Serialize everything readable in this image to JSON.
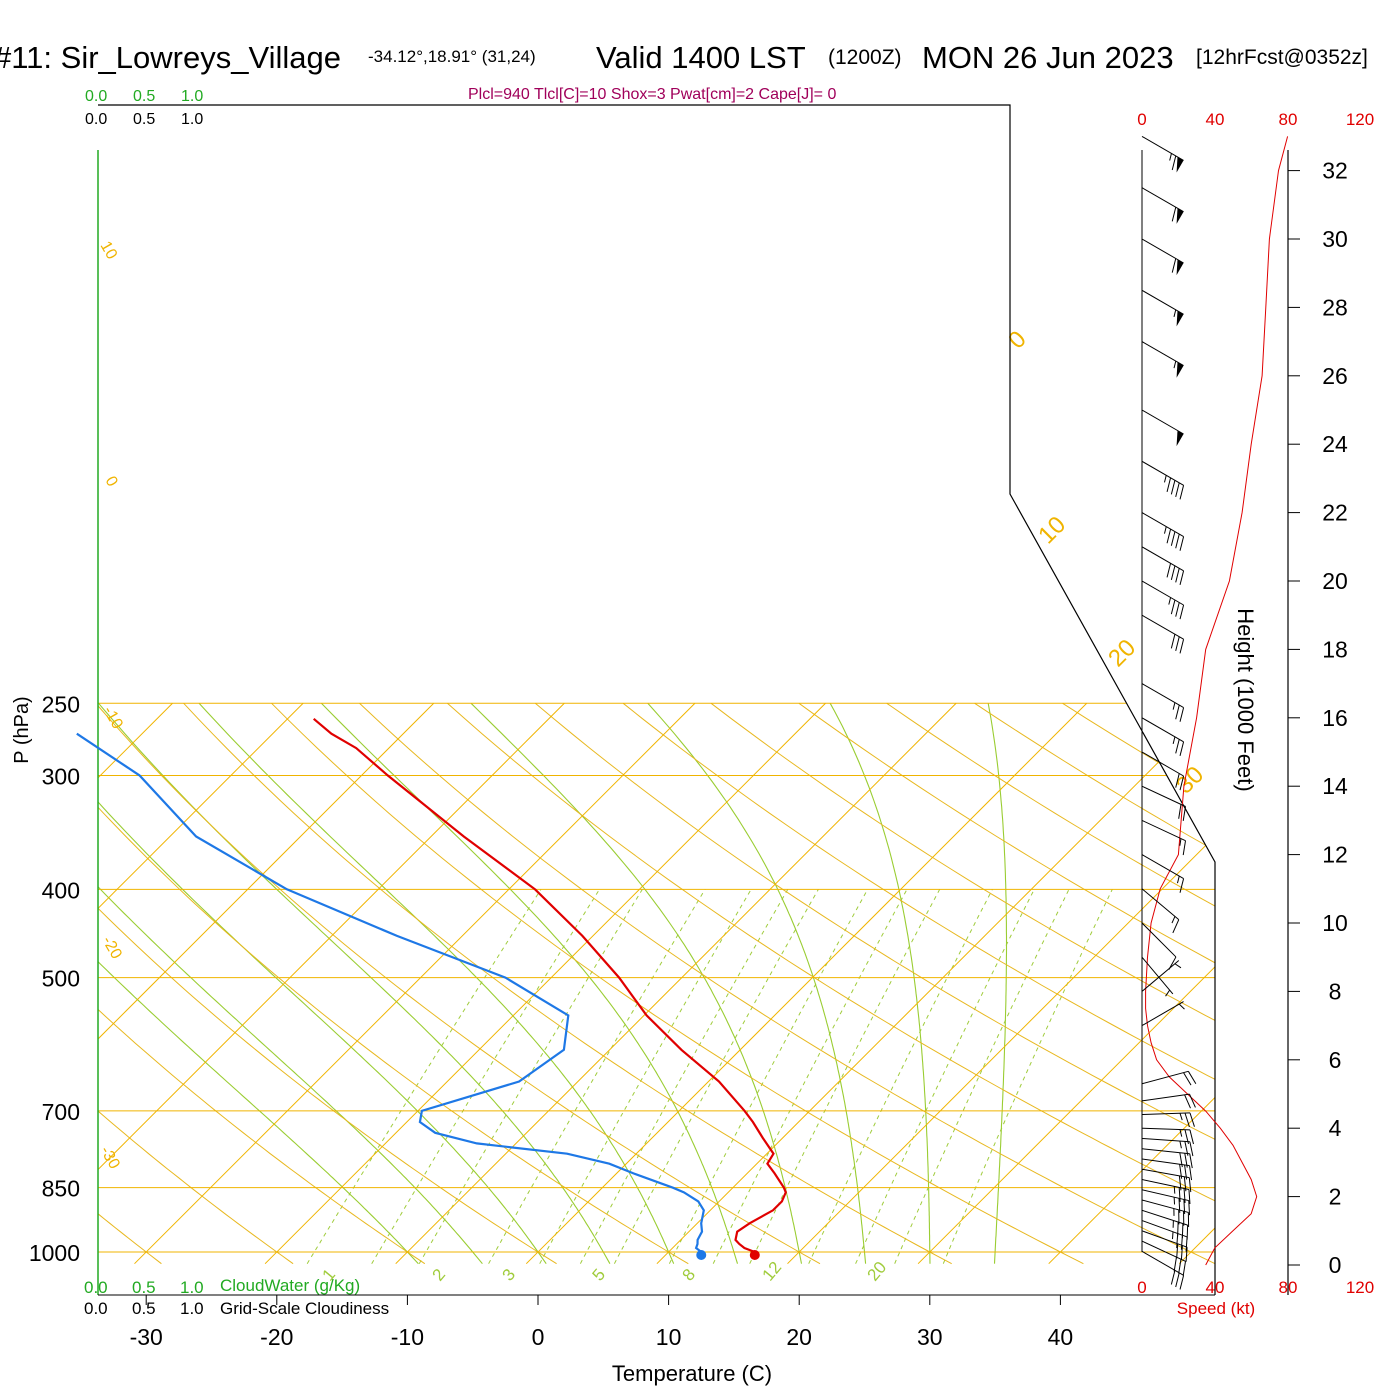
{
  "header": {
    "station": "#11: Sir_Lowreys_Village",
    "coords": "-34.12°,18.91° (31,24)",
    "valid": "Valid 1400 LST",
    "zulu": "(1200Z)",
    "date": "MON 26 Jun 2023",
    "forecast": "[12hrFcst@0352z]"
  },
  "params_line": "Plcl=940 Tlcl[C]=10 Shox=3 Pwat[cm]=2 Cape[J]= 0",
  "colors": {
    "isotherm": "#f0b400",
    "dry_adiabat": "#e8b820",
    "moist_adiabat": "#9acd32",
    "mixing_ratio": "#a0cc3c",
    "temperature": "#e00000",
    "dewpoint": "#1e78e6",
    "cloud_scale": "#22aa22",
    "params": "#a0005a",
    "speed": "#e00000",
    "axis": "#000000"
  },
  "top_scales": {
    "cloud_water_ticks": [
      "0.0",
      "0.5",
      "1.0"
    ],
    "cloudiness_ticks": [
      "0.0",
      "0.5",
      "1.0"
    ]
  },
  "bottom_scales": {
    "cloud_water_ticks": [
      "0.0",
      "0.5",
      "1.0"
    ],
    "cloud_water_label": "CloudWater (g/Kg)",
    "cloudiness_ticks": [
      "0.0",
      "0.5",
      "1.0"
    ],
    "cloudiness_label": "Grid-Scale Cloudiness"
  },
  "speed_axis": {
    "ticks": [
      "0",
      "40",
      "80",
      "120"
    ],
    "label": "Speed (kt)"
  },
  "height_axis": {
    "label": "Height (1000 Feet)",
    "ticks": [
      "0",
      "2",
      "4",
      "6",
      "8",
      "10",
      "12",
      "14",
      "16",
      "18",
      "20",
      "22",
      "24",
      "26",
      "28",
      "30",
      "32"
    ]
  },
  "chart_data": {
    "type": "line",
    "diagram": "skew-T log-P",
    "xlabel": "Temperature (C)",
    "ylabel": "P (hPa)",
    "x_ticks": [
      -30,
      -20,
      -10,
      0,
      10,
      20,
      30,
      40
    ],
    "y_ticks": [
      250,
      300,
      400,
      500,
      700,
      850,
      1000
    ],
    "xlim_at_1000hPa": [
      -33,
      45
    ],
    "ylim": [
      1030,
      250
    ],
    "isotherm_labels": [
      "10",
      "0",
      "-10",
      "-20",
      "-30",
      "0",
      "10",
      "20",
      "30"
    ],
    "mixing_ratio_labels": [
      "1",
      "2",
      "3",
      "5",
      "8",
      "12",
      "20"
    ],
    "series": [
      {
        "name": "Temperature",
        "pressure": [
          1000,
          990,
          980,
          970,
          950,
          930,
          900,
          880,
          860,
          850,
          820,
          800,
          780,
          750,
          720,
          700,
          650,
          600,
          550,
          500,
          450,
          400,
          350,
          300,
          280,
          270,
          260
        ],
        "values": [
          16.6,
          15.5,
          14.8,
          14.2,
          13.7,
          14.0,
          14.8,
          14.8,
          14.4,
          13.9,
          12.1,
          10.8,
          10.5,
          8.5,
          6.5,
          5.0,
          0.8,
          -4.5,
          -9.8,
          -14.8,
          -20.8,
          -28.0,
          -37.5,
          -48.0,
          -52.5,
          -55.5,
          -58.0
        ]
      },
      {
        "name": "Dewpoint",
        "pressure": [
          1000,
          990,
          980,
          970,
          950,
          930,
          900,
          880,
          860,
          850,
          820,
          800,
          780,
          760,
          740,
          720,
          700,
          650,
          600,
          550,
          500,
          450,
          400,
          350,
          300,
          270
        ],
        "values": [
          12.5,
          11.8,
          11.6,
          11.3,
          11.0,
          10.3,
          9.5,
          8.4,
          6.6,
          5.4,
          1.3,
          -1.3,
          -5.3,
          -13.0,
          -17.0,
          -19.0,
          -19.7,
          -14.5,
          -13.5,
          -15.8,
          -23.5,
          -35.0,
          -47.0,
          -58.0,
          -67.0,
          -75.0
        ]
      },
      {
        "name": "Wind speed (kt)",
        "height_kft": [
          0,
          0.5,
          1,
          1.5,
          2,
          2.5,
          3,
          3.5,
          4,
          4.5,
          5,
          5.5,
          6,
          6.5,
          7,
          7.5,
          8,
          9,
          10,
          11,
          12,
          14,
          16,
          18,
          20,
          22,
          24,
          26,
          28,
          30,
          32,
          33
        ],
        "values": [
          35,
          40,
          50,
          60,
          63,
          60,
          55,
          50,
          43,
          35,
          25,
          15,
          8,
          5,
          3,
          2,
          2,
          3,
          5,
          10,
          20,
          23,
          30,
          35,
          48,
          55,
          60,
          66,
          68,
          70,
          75,
          80
        ]
      }
    ],
    "parcel_markers": [
      {
        "name": "surface temperature",
        "pressure": 1000,
        "value": 16.6
      },
      {
        "name": "surface dewpoint",
        "pressure": 1000,
        "value": 12.5
      }
    ],
    "wind_barbs": [
      {
        "height_kft": 0.4,
        "dir": 300,
        "spd": 30
      },
      {
        "height_kft": 0.7,
        "dir": 295,
        "spd": 30
      },
      {
        "height_kft": 1.0,
        "dir": 290,
        "spd": 32
      },
      {
        "height_kft": 1.3,
        "dir": 290,
        "spd": 35
      },
      {
        "height_kft": 1.6,
        "dir": 288,
        "spd": 35
      },
      {
        "height_kft": 1.9,
        "dir": 285,
        "spd": 35
      },
      {
        "height_kft": 2.2,
        "dir": 283,
        "spd": 35
      },
      {
        "height_kft": 2.5,
        "dir": 282,
        "spd": 35
      },
      {
        "height_kft": 2.8,
        "dir": 280,
        "spd": 30
      },
      {
        "height_kft": 3.1,
        "dir": 278,
        "spd": 30
      },
      {
        "height_kft": 3.4,
        "dir": 276,
        "spd": 30
      },
      {
        "height_kft": 3.7,
        "dir": 274,
        "spd": 25
      },
      {
        "height_kft": 4.0,
        "dir": 272,
        "spd": 25
      },
      {
        "height_kft": 4.4,
        "dir": 268,
        "spd": 25
      },
      {
        "height_kft": 4.8,
        "dir": 262,
        "spd": 20
      },
      {
        "height_kft": 5.3,
        "dir": 255,
        "spd": 20
      },
      {
        "height_kft": 7.0,
        "dir": 240,
        "spd": 5
      },
      {
        "height_kft": 8.0,
        "dir": 230,
        "spd": 5
      },
      {
        "height_kft": 9.0,
        "dir": 320,
        "spd": 5
      },
      {
        "height_kft": 10.0,
        "dir": 315,
        "spd": 10
      },
      {
        "height_kft": 11.0,
        "dir": 310,
        "spd": 15
      },
      {
        "height_kft": 12.0,
        "dir": 300,
        "spd": 15
      },
      {
        "height_kft": 13.0,
        "dir": 295,
        "spd": 15
      },
      {
        "height_kft": 14.0,
        "dir": 295,
        "spd": 20
      },
      {
        "height_kft": 15.0,
        "dir": 300,
        "spd": 20
      },
      {
        "height_kft": 16.0,
        "dir": 300,
        "spd": 25
      },
      {
        "height_kft": 17.0,
        "dir": 300,
        "spd": 25
      },
      {
        "height_kft": 19.0,
        "dir": 300,
        "spd": 30
      },
      {
        "height_kft": 20.0,
        "dir": 300,
        "spd": 35
      },
      {
        "height_kft": 21.0,
        "dir": 300,
        "spd": 40
      },
      {
        "height_kft": 22.0,
        "dir": 300,
        "spd": 45
      },
      {
        "height_kft": 23.5,
        "dir": 300,
        "spd": 45
      },
      {
        "height_kft": 25.0,
        "dir": 300,
        "spd": 50
      },
      {
        "height_kft": 27.0,
        "dir": 300,
        "spd": 55
      },
      {
        "height_kft": 28.5,
        "dir": 300,
        "spd": 55
      },
      {
        "height_kft": 30.0,
        "dir": 300,
        "spd": 60
      },
      {
        "height_kft": 31.5,
        "dir": 300,
        "spd": 60
      },
      {
        "height_kft": 33.0,
        "dir": 300,
        "spd": 65
      }
    ]
  }
}
